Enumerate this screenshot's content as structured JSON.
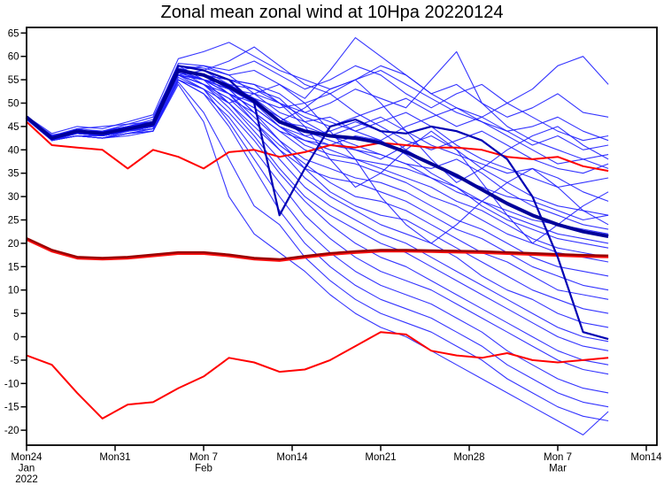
{
  "chart_data": {
    "type": "line",
    "title": "Zonal mean zonal wind at 10Hpa 20220124",
    "xlabel": "",
    "ylabel": "",
    "grid": false,
    "legend": "none",
    "day_step": 2,
    "x_axis": {
      "start_date": "Mon 24 Jan 2022",
      "range_days": [
        0,
        49.8
      ],
      "ticks": [
        {
          "day": 0,
          "label": "Mon24",
          "sub": "Jan",
          "sub2": "2022"
        },
        {
          "day": 7,
          "label": "Mon31"
        },
        {
          "day": 14,
          "label": "Mon 7",
          "sub": "Feb"
        },
        {
          "day": 21,
          "label": "Mon14"
        },
        {
          "day": 28,
          "label": "Mon21"
        },
        {
          "day": 35,
          "label": "Mon28"
        },
        {
          "day": 42,
          "label": "Mon 7",
          "sub": "Mar"
        },
        {
          "day": 49,
          "label": "Mon14"
        }
      ]
    },
    "y_axis": {
      "range": [
        -23.2,
        66.2
      ],
      "ticks": [
        65,
        60,
        55,
        50,
        45,
        40,
        35,
        30,
        25,
        20,
        15,
        10,
        5,
        0,
        -5,
        -10,
        -15,
        -20
      ]
    },
    "series": [
      {
        "id": "red-upper",
        "name": "red line (upper)",
        "color": "#ff0000",
        "width": 2,
        "values": [
          46,
          41,
          40.5,
          40,
          36,
          40,
          38.5,
          36,
          39.5,
          40,
          38.5,
          39.5,
          41,
          40.5,
          41.5,
          41,
          40.5,
          40.5,
          40,
          38.5,
          38,
          38.5,
          36.5,
          35.5
        ]
      },
      {
        "id": "red-lower",
        "name": "red line (lower)",
        "color": "#ff0000",
        "width": 2,
        "values": [
          -4,
          -6,
          -12,
          -17.5,
          -14.5,
          -14,
          -11,
          -8.5,
          -4.5,
          -5.5,
          -7.5,
          -7,
          -5,
          -2,
          1,
          0.5,
          -3,
          -4,
          -4.5,
          -3.5,
          -5,
          -5.5,
          -5,
          -4.5
        ]
      },
      {
        "id": "climatological-mean",
        "name": "climatological mean (dark red thick)",
        "color": "#990000",
        "width": 3.2,
        "overlay_color": "#ff1010",
        "values": [
          21,
          18.5,
          17,
          16.8,
          17,
          17.5,
          18,
          18,
          17.5,
          16.8,
          16.5,
          17.2,
          17.8,
          18.2,
          18.5,
          18.5,
          18.4,
          18.3,
          18.2,
          18,
          17.8,
          17.6,
          17.4,
          17.3
        ]
      },
      {
        "id": "control",
        "name": "control forecast (navy)",
        "color": "#0000b3",
        "width": 2.2,
        "values": [
          47,
          42.5,
          44,
          43.5,
          44.5,
          46,
          58,
          57,
          55,
          50,
          26,
          36,
          45,
          46.5,
          44,
          43.5,
          45,
          44,
          42,
          38,
          30,
          17,
          1,
          -0.5
        ]
      },
      {
        "id": "ensemble-mean",
        "name": "ensemble mean (thick blue)",
        "color": "#000099",
        "width": 4,
        "values": [
          47,
          42.5,
          44,
          43.5,
          44.5,
          45.5,
          57,
          56,
          53.5,
          50.5,
          46,
          44,
          43,
          42.5,
          41.5,
          39.5,
          37,
          34.5,
          31.5,
          28.5,
          26,
          24,
          22.5,
          21.5
        ]
      }
    ],
    "members": {
      "name": "ensemble member forecasts",
      "color": "#1f1fff",
      "width": 1.1,
      "values": [
        [
          47.2,
          43.5,
          45,
          44.5,
          46,
          47.5,
          59.5,
          61,
          63,
          60,
          57,
          55,
          53,
          55,
          57,
          54,
          51,
          48,
          46,
          44,
          45,
          47,
          44,
          42
        ],
        [
          47,
          43,
          44.5,
          45,
          45.5,
          47,
          58,
          57,
          59,
          62,
          58,
          54,
          52,
          55,
          58,
          56,
          52,
          49,
          47,
          44,
          41,
          43,
          40,
          41
        ],
        [
          46.8,
          42.5,
          44,
          44,
          45,
          46.5,
          58.5,
          58,
          57,
          59,
          56,
          53,
          55,
          58,
          56,
          52,
          49,
          52,
          54,
          50,
          47,
          44,
          42,
          43
        ],
        [
          47,
          42.8,
          44.2,
          43.5,
          45,
          46,
          58,
          57.5,
          56,
          57,
          54,
          51,
          57,
          64,
          60,
          56,
          52,
          54,
          50,
          47,
          49,
          52,
          48,
          47
        ],
        [
          47.1,
          42.5,
          44.5,
          44,
          45.5,
          46,
          57.5,
          56,
          55,
          54,
          52,
          48,
          50,
          53,
          51,
          49,
          55,
          61,
          50,
          45,
          42,
          40,
          38,
          36
        ],
        [
          47,
          43.2,
          44,
          43,
          44.5,
          45.5,
          58,
          57,
          55,
          53,
          50,
          47,
          45,
          47,
          49,
          51,
          48,
          45,
          47,
          50,
          53,
          58,
          60,
          54
        ],
        [
          47,
          42.2,
          43.5,
          44,
          45,
          46,
          57,
          58,
          56,
          52,
          48,
          46,
          47,
          44,
          42,
          45,
          47,
          49,
          46,
          43,
          40,
          37,
          38,
          39
        ],
        [
          46.6,
          42,
          44,
          43.5,
          44,
          45,
          57,
          56,
          54,
          51,
          49,
          50,
          52,
          48,
          45,
          42,
          40,
          42,
          44,
          41,
          38,
          36,
          35,
          37
        ],
        [
          47,
          43,
          44.5,
          43,
          44,
          46,
          58,
          55,
          53,
          52,
          50,
          48,
          46,
          44,
          46,
          48,
          45,
          41,
          38,
          36,
          34,
          32,
          33,
          34
        ],
        [
          47,
          42.5,
          44,
          44,
          45,
          45.5,
          56,
          55,
          54,
          53,
          51,
          46,
          43,
          45,
          47,
          44,
          41,
          39,
          37,
          35,
          36,
          34,
          31,
          29
        ],
        [
          47,
          42,
          43,
          43,
          44,
          45,
          56,
          57,
          55,
          50,
          47,
          44,
          42,
          40,
          38,
          41,
          43,
          40,
          36,
          33,
          30,
          28,
          27,
          26
        ],
        [
          46.7,
          42.5,
          44,
          43.5,
          45,
          46,
          57,
          56,
          52,
          49,
          45,
          43,
          44,
          46,
          44,
          40,
          37,
          34,
          32,
          30,
          29,
          27,
          25,
          26
        ],
        [
          47,
          43,
          44,
          43,
          44,
          45,
          56,
          54,
          52,
          50,
          46,
          45,
          43,
          41,
          39,
          37,
          36,
          38,
          35,
          31,
          28,
          26,
          24,
          23
        ],
        [
          47,
          42.2,
          44,
          44,
          44.5,
          45,
          57,
          55,
          53,
          48,
          44,
          42,
          41,
          43,
          42,
          39,
          35,
          32,
          29,
          27,
          25,
          24,
          23,
          22
        ],
        [
          47,
          42.5,
          43.5,
          43,
          44,
          45.5,
          56.5,
          55,
          52,
          49,
          45,
          42,
          40,
          38,
          37,
          36,
          34,
          31,
          29,
          26,
          24,
          22,
          21,
          20
        ],
        [
          47,
          43,
          44,
          43.5,
          45,
          46,
          57,
          56,
          54,
          51,
          47,
          43,
          41,
          40,
          39,
          37,
          34,
          32,
          28,
          25,
          23,
          21,
          20,
          19
        ],
        [
          46.6,
          42,
          43.5,
          43,
          44,
          45,
          56,
          55,
          53,
          50,
          45,
          41,
          39,
          38,
          36,
          34,
          32,
          29,
          27,
          24,
          21,
          19,
          18,
          17
        ],
        [
          47,
          42.5,
          44,
          43,
          44.5,
          45,
          57,
          54,
          51,
          48,
          44,
          40,
          38,
          37,
          35,
          33,
          30,
          28,
          25,
          22,
          20,
          18,
          17,
          16
        ],
        [
          47,
          42,
          43,
          42.5,
          44,
          45,
          56,
          55,
          52,
          47,
          42,
          38,
          36,
          34,
          33,
          31,
          28,
          25,
          23,
          20,
          17,
          15,
          14,
          13
        ],
        [
          47,
          43,
          44,
          43,
          44,
          45.5,
          57,
          55,
          50,
          45,
          40,
          36,
          34,
          33,
          31,
          29,
          26,
          23,
          21,
          18,
          15,
          13,
          11,
          10
        ],
        [
          46.5,
          42.5,
          43.5,
          43,
          44,
          45,
          56,
          54,
          51,
          46,
          41,
          37,
          33,
          30,
          29,
          27,
          24,
          21,
          18,
          16,
          13,
          10,
          9,
          8
        ],
        [
          47,
          42,
          44,
          43.5,
          44.5,
          45,
          57,
          56,
          53,
          48,
          42,
          36,
          31,
          28,
          26,
          25,
          22,
          19,
          16,
          13,
          10,
          8,
          6,
          5
        ],
        [
          47,
          42.5,
          43.5,
          43,
          44,
          45,
          56.5,
          55,
          52,
          46,
          40,
          34,
          30,
          27,
          24,
          22,
          20,
          17,
          13,
          10,
          8,
          5,
          3,
          2
        ],
        [
          47,
          42,
          43,
          42.5,
          43.5,
          44.5,
          55,
          53,
          50,
          44,
          38,
          32,
          28,
          25,
          22,
          20,
          17,
          14,
          11,
          8,
          5,
          2,
          0,
          -1
        ],
        [
          47,
          42.5,
          44,
          43,
          44,
          45,
          56,
          54,
          49,
          43,
          36,
          30,
          26,
          23,
          20,
          18,
          15,
          12,
          9,
          6,
          3,
          0,
          -2,
          -3
        ],
        [
          46.5,
          42,
          43.5,
          43,
          44,
          44.5,
          55.5,
          53,
          48,
          42,
          35,
          29,
          24,
          20,
          17,
          15,
          12,
          9,
          6,
          3,
          0,
          -3,
          -5,
          -6
        ],
        [
          47,
          42,
          43,
          42.5,
          43.5,
          44,
          55,
          52,
          47,
          40,
          33,
          26,
          21,
          17,
          14,
          12,
          10,
          7,
          4,
          1,
          -2,
          -5,
          -7,
          -8
        ],
        [
          47,
          42.5,
          43.5,
          43,
          44,
          45,
          56,
          53,
          46,
          38,
          30,
          23,
          18,
          14,
          11,
          9,
          7,
          4,
          1,
          -3,
          -6,
          -9,
          -11,
          -12
        ],
        [
          47,
          42,
          43,
          42.5,
          43.5,
          44.5,
          55,
          52,
          45,
          36,
          27,
          20,
          15,
          11,
          8,
          6,
          4,
          1,
          -2,
          -6,
          -9,
          -12,
          -14,
          -15
        ],
        [
          46.5,
          42,
          43,
          42.5,
          43.5,
          44,
          54.5,
          48,
          38,
          28,
          24,
          17,
          12,
          8,
          5,
          3,
          1,
          -2,
          -5,
          -9,
          -12,
          -15,
          -17,
          -18
        ],
        [
          47,
          42,
          43,
          42.5,
          43,
          44,
          54,
          46,
          30,
          22,
          18,
          14,
          9,
          5,
          2,
          0,
          -3,
          -6,
          -9,
          -12,
          -15,
          -18,
          -21,
          -16
        ],
        [
          47,
          43,
          44,
          43.5,
          44.5,
          46,
          57,
          56,
          55,
          54,
          50,
          45,
          38,
          32,
          35,
          40,
          44,
          40,
          33,
          26,
          20,
          24,
          28,
          31
        ],
        [
          47,
          42.5,
          43.5,
          43,
          44,
          45,
          56,
          54,
          50,
          52,
          54,
          50,
          44,
          38,
          30,
          24,
          20,
          24,
          29,
          33,
          36,
          32,
          27,
          24
        ],
        [
          47,
          42,
          44,
          43.5,
          45,
          46,
          58,
          57,
          54,
          50,
          46,
          49,
          53,
          55,
          50,
          44,
          38,
          33,
          36,
          40,
          43,
          45,
          41,
          38
        ]
      ]
    }
  }
}
